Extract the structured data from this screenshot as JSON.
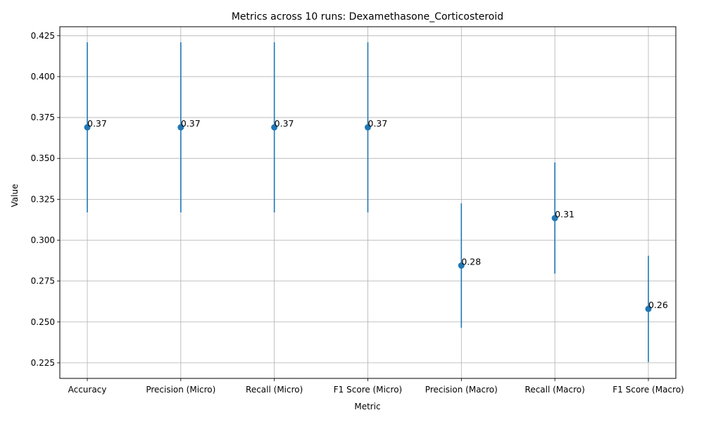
{
  "chart_data": {
    "type": "scatter",
    "title": "Metrics across 10 runs: Dexamethasone_Corticosteroid",
    "xlabel": "Metric",
    "ylabel": "Value",
    "categories": [
      "Accuracy",
      "Precision (Micro)",
      "Recall (Micro)",
      "F1 Score (Micro)",
      "Precision (Macro)",
      "Recall (Macro)",
      "F1 Score (Macro)"
    ],
    "values": [
      0.369,
      0.369,
      0.369,
      0.369,
      0.2845,
      0.3135,
      0.258
    ],
    "error_low": [
      0.317,
      0.317,
      0.317,
      0.317,
      0.2465,
      0.2795,
      0.2255
    ],
    "error_high": [
      0.421,
      0.421,
      0.421,
      0.421,
      0.3225,
      0.3475,
      0.2905
    ],
    "data_labels": [
      "0.37",
      "0.37",
      "0.37",
      "0.37",
      "0.28",
      "0.31",
      "0.26"
    ],
    "ylim": [
      0.2155,
      0.4305
    ],
    "yticks": [
      0.225,
      0.25,
      0.275,
      0.3,
      0.325,
      0.35,
      0.375,
      0.4,
      0.425
    ],
    "ytick_labels": [
      "0.225",
      "0.250",
      "0.275",
      "0.300",
      "0.325",
      "0.350",
      "0.375",
      "0.400",
      "0.425"
    ],
    "grid": true,
    "colors": {
      "series": "#1f77b4",
      "grid": "#b0b0b0",
      "axes": "#000000"
    }
  }
}
